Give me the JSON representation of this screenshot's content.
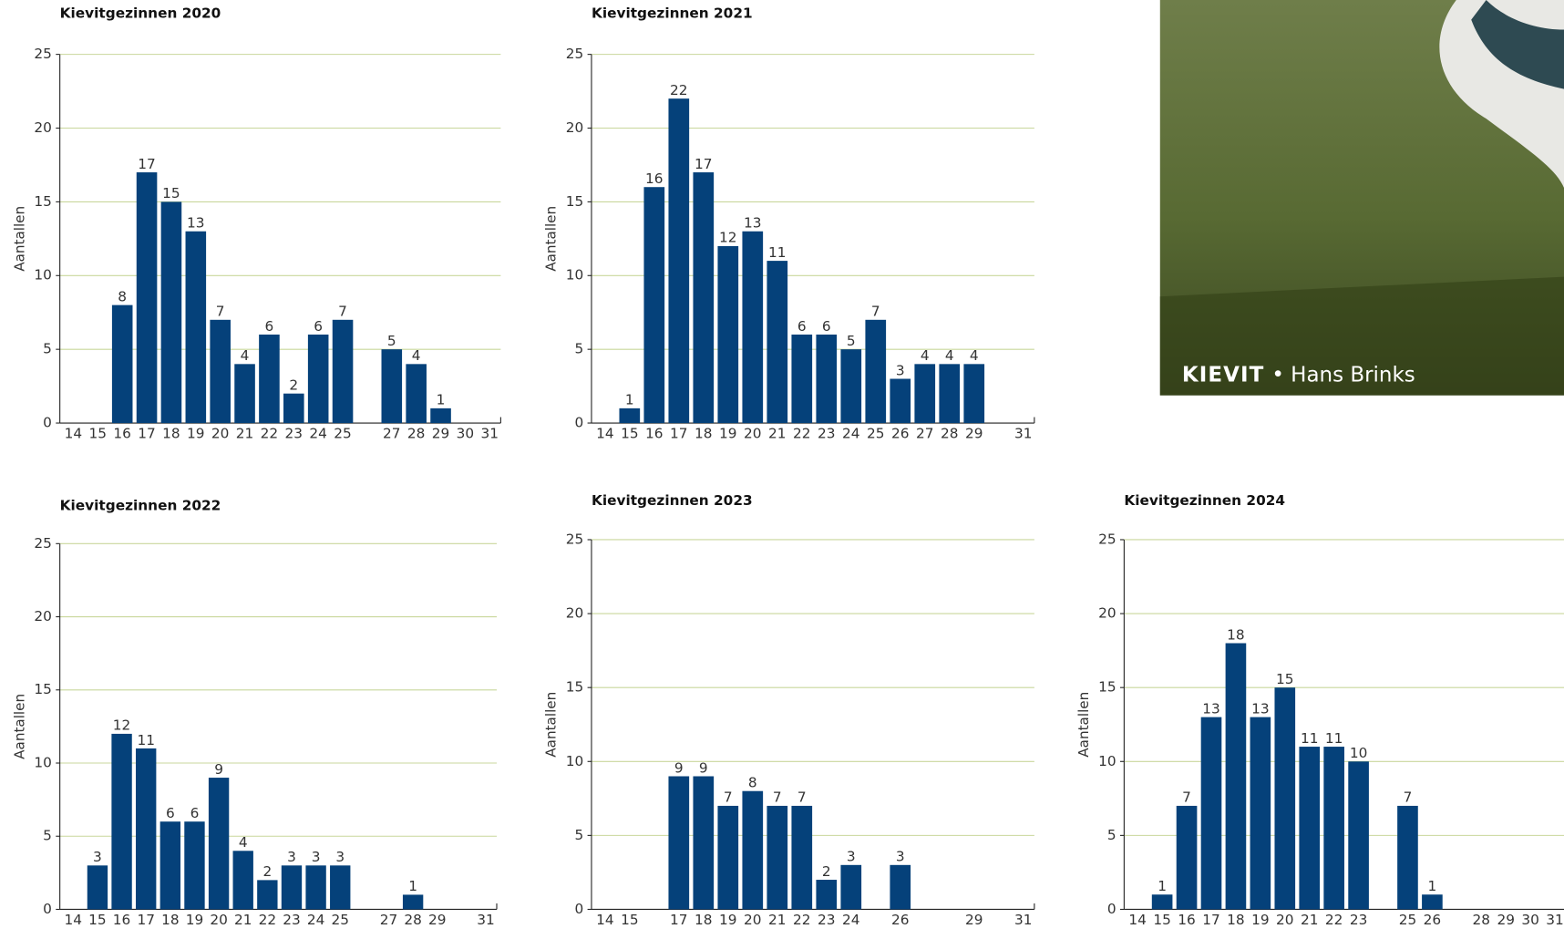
{
  "chart_data": [
    {
      "type": "bar",
      "title": "Kievitgezinnen 2020",
      "y_label": "Aantallen",
      "color": "#05417a",
      "grid": true,
      "categories": [
        "14",
        "15",
        "16",
        "17",
        "18",
        "19",
        "20",
        "21",
        "22",
        "23",
        "24",
        "25",
        null,
        "27",
        "28",
        "29",
        "30",
        "31"
      ],
      "values": [
        null,
        null,
        8,
        17,
        15,
        13,
        7,
        4,
        6,
        2,
        6,
        7,
        null,
        5,
        4,
        1,
        null,
        null
      ],
      "ylim": [
        0,
        25
      ],
      "yticks": [
        0,
        5,
        10,
        15,
        20,
        25
      ]
    },
    {
      "type": "bar",
      "title": "Kievitgezinnen 2021",
      "y_label": "Aantallen",
      "color": "#05417a",
      "grid": true,
      "categories": [
        "14",
        "15",
        "16",
        "17",
        "18",
        "19",
        "20",
        "21",
        "22",
        "23",
        "24",
        "25",
        "26",
        "27",
        "28",
        "29",
        null,
        "31"
      ],
      "values": [
        null,
        1,
        16,
        22,
        17,
        12,
        13,
        11,
        6,
        6,
        5,
        7,
        3,
        4,
        4,
        4,
        null,
        null
      ],
      "ylim": [
        0,
        25
      ],
      "yticks": [
        0,
        5,
        10,
        15,
        20,
        25
      ]
    },
    {
      "type": "bar",
      "title": "Kievitgezinnen 2022",
      "y_label": "Aantallen",
      "color": "#05417a",
      "grid": true,
      "categories": [
        "14",
        "15",
        "16",
        "17",
        "18",
        "19",
        "20",
        "21",
        "22",
        "23",
        "24",
        "25",
        null,
        "27",
        "28",
        "29",
        null,
        "31"
      ],
      "values": [
        null,
        3,
        12,
        11,
        6,
        6,
        9,
        4,
        2,
        3,
        3,
        3,
        null,
        null,
        1,
        null,
        null,
        null
      ],
      "ylim": [
        0,
        25
      ],
      "yticks": [
        0,
        5,
        10,
        15,
        20,
        25
      ]
    },
    {
      "type": "bar",
      "title": "Kievitgezinnen 2023",
      "y_label": "Aantallen",
      "color": "#05417a",
      "grid": true,
      "categories": [
        "14",
        "15",
        null,
        "17",
        "18",
        "19",
        "20",
        "21",
        "22",
        "23",
        "24",
        null,
        "26",
        null,
        null,
        "29",
        null,
        "31"
      ],
      "values": [
        null,
        null,
        null,
        9,
        9,
        7,
        8,
        7,
        7,
        2,
        3,
        null,
        3,
        null,
        null,
        null,
        null,
        null
      ],
      "ylim": [
        0,
        25
      ],
      "yticks": [
        0,
        5,
        10,
        15,
        20,
        25
      ]
    },
    {
      "type": "bar",
      "title": "Kievitgezinnen 2024",
      "y_label": "Aantallen",
      "color": "#05417a",
      "grid": true,
      "categories": [
        "14",
        "15",
        "16",
        "17",
        "18",
        "19",
        "20",
        "21",
        "22",
        "23",
        null,
        "25",
        "26",
        null,
        "28",
        "29",
        "30",
        "31"
      ],
      "values": [
        null,
        1,
        7,
        13,
        18,
        13,
        15,
        11,
        11,
        10,
        null,
        7,
        1,
        null,
        null,
        null,
        null,
        null
      ],
      "ylim": [
        0,
        25
      ],
      "yticks": [
        0,
        5,
        10,
        15,
        20,
        25
      ]
    }
  ],
  "photo": {
    "title": "KIEVIT",
    "credit": "• Hans Brinks"
  }
}
